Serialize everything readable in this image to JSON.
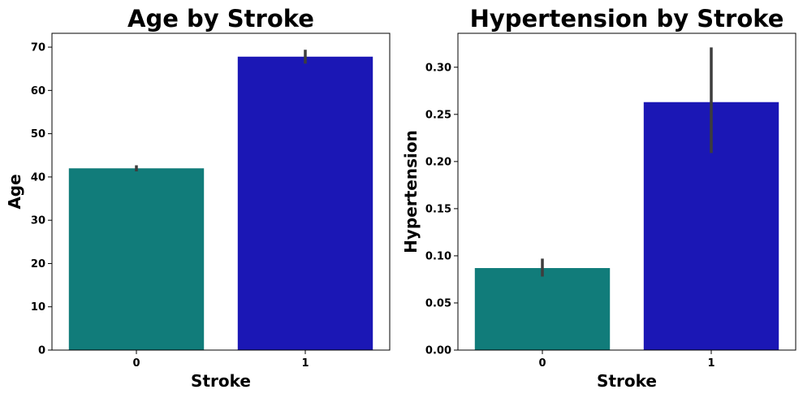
{
  "chart_data": [
    {
      "type": "bar",
      "title": "Age by Stroke",
      "xlabel": "Stroke",
      "ylabel": "Age",
      "categories": [
        "0",
        "1"
      ],
      "values": [
        42.0,
        67.8
      ],
      "error_low": [
        41.3,
        66.2
      ],
      "error_high": [
        42.7,
        69.4
      ],
      "colors": [
        "#117c7a",
        "#1b17b5"
      ],
      "error_color": "#3d3d3d",
      "ylim": [
        0,
        73.2
      ],
      "yticks": [
        0,
        10,
        20,
        30,
        40,
        50,
        60,
        70
      ],
      "ytick_labels": [
        "0",
        "10",
        "20",
        "30",
        "40",
        "50",
        "60",
        "70"
      ],
      "grid": false,
      "legend": "none"
    },
    {
      "type": "bar",
      "title": "Hypertension by Stroke",
      "xlabel": "Stroke",
      "ylabel": "Hypertension",
      "categories": [
        "0",
        "1"
      ],
      "values": [
        0.087,
        0.263
      ],
      "error_low": [
        0.078,
        0.209
      ],
      "error_high": [
        0.097,
        0.321
      ],
      "colors": [
        "#117c7a",
        "#1b17b5"
      ],
      "error_color": "#3d3d3d",
      "ylim": [
        0,
        0.336
      ],
      "yticks": [
        0.0,
        0.05,
        0.1,
        0.15,
        0.2,
        0.25,
        0.3
      ],
      "ytick_labels": [
        "0.00",
        "0.05",
        "0.10",
        "0.15",
        "0.20",
        "0.25",
        "0.30"
      ],
      "grid": false,
      "legend": "none"
    }
  ]
}
